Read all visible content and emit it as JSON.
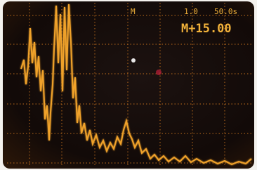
{
  "readout": {
    "marker": "M",
    "scale": "1.0",
    "timebase": "50.0s",
    "offset": "M+15.00"
  }
}
